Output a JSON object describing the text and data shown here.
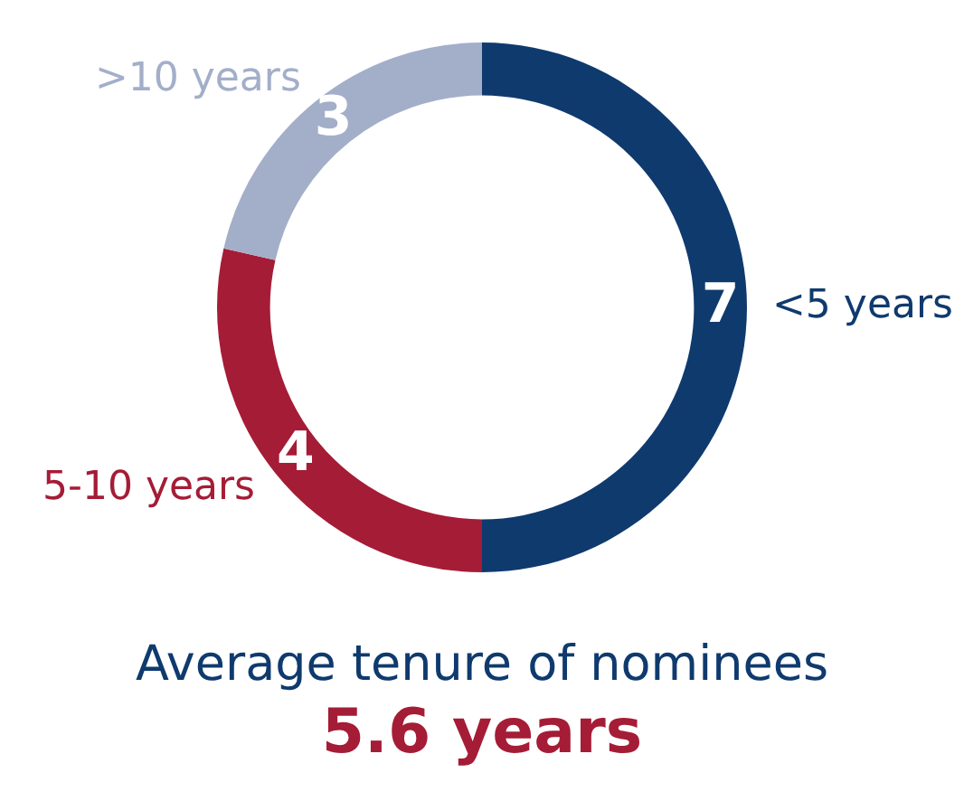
{
  "chart_data": {
    "type": "donut",
    "categories": [
      "<5 years",
      "5-10 years",
      ">10 years"
    ],
    "values": [
      7,
      4,
      3
    ],
    "colors": [
      "#0f3a6e",
      "#a51c36",
      "#a3afc9"
    ],
    "data_labels": true,
    "legend": false,
    "annotations": [
      "Average tenure of nominees",
      "5.6 years"
    ]
  }
}
